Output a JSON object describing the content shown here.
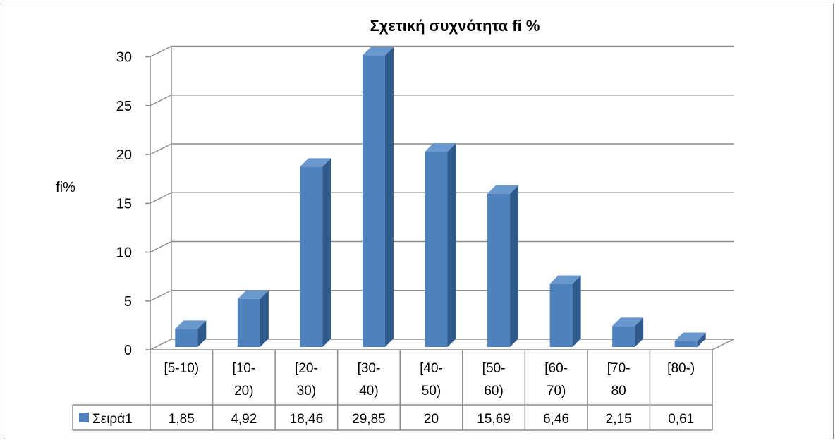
{
  "chart_data": {
    "type": "bar",
    "title": "Σχετική συχνότητα  fi %",
    "ylabel": "fi%",
    "xlabel": "",
    "ylim": [
      0,
      30
    ],
    "yticks": [
      0,
      5,
      10,
      15,
      20,
      25,
      30
    ],
    "grid": true,
    "style": "3d-clustered-column",
    "categories": [
      [
        "[5-10)"
      ],
      [
        "[10-",
        "20)"
      ],
      [
        "[20-",
        "30)"
      ],
      [
        "[30-",
        "40)"
      ],
      [
        "[40-",
        "50)"
      ],
      [
        "[50-",
        "60)"
      ],
      [
        "[60-",
        "70)"
      ],
      [
        "[70-",
        "80"
      ],
      [
        "[80-)"
      ]
    ],
    "series": [
      {
        "name": "Σειρά1",
        "values": [
          1.85,
          4.92,
          18.46,
          29.85,
          20,
          15.69,
          6.46,
          2.15,
          0.61
        ],
        "value_labels": [
          "1,85",
          "4,92",
          "18,46",
          "29,85",
          "20",
          "15,69",
          "6,46",
          "2,15",
          "0,61"
        ],
        "color": "#4f81bd"
      }
    ],
    "data_table": true
  }
}
